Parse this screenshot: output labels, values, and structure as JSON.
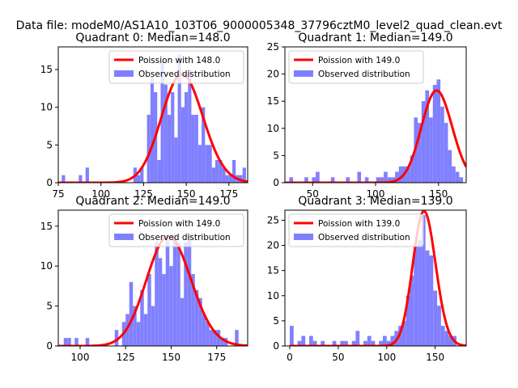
{
  "figure": {
    "suptitle": "Data file: modeM0/AS1A10_103T06_9000005348_37796cztM0_level2_quad_clean.evt"
  },
  "colors": {
    "poisson_line": "#ff0000",
    "observed_bars": "#8080ff",
    "axes": "#000000",
    "background": "#ffffff"
  },
  "chart_data": [
    {
      "type": "bar",
      "title": "Quadrant 0: Median=148.0",
      "xlabel": "",
      "ylabel": "",
      "xlim": [
        75,
        186
      ],
      "ylim": [
        0,
        18
      ],
      "xticks": [
        75,
        100,
        125,
        150,
        175
      ],
      "yticks": [
        0,
        5,
        10,
        15
      ],
      "legend_position": "top-right",
      "legend": [
        "Poission with 148.0",
        "Observed distribution"
      ],
      "series": [
        {
          "name": "Observed distribution",
          "bin_width": 2,
          "x": [
            78,
            88,
            92,
            120,
            122,
            124,
            128,
            130,
            132,
            134,
            136,
            138,
            140,
            142,
            144,
            146,
            148,
            150,
            152,
            154,
            156,
            158,
            160,
            162,
            164,
            166,
            168,
            170,
            172,
            174,
            176,
            178,
            180,
            182,
            184
          ],
          "values": [
            1,
            1,
            2,
            2,
            1,
            2,
            9,
            14,
            12,
            3,
            16,
            13,
            9,
            12,
            6,
            17,
            10,
            12,
            15,
            9,
            9,
            5,
            10,
            5,
            5,
            2,
            3,
            3,
            2,
            1,
            1,
            3,
            1,
            1,
            2
          ]
        },
        {
          "name": "Poission with 148.0",
          "mean": 148.0
        }
      ]
    },
    {
      "type": "bar",
      "title": "Quadrant 1: Median=149.0",
      "xlabel": "",
      "ylabel": "",
      "xlim": [
        28,
        172
      ],
      "ylim": [
        0,
        25
      ],
      "xticks": [
        50,
        100,
        150
      ],
      "yticks": [
        0,
        5,
        10,
        15,
        20,
        25
      ],
      "legend_position": "top-left",
      "legend": [
        "Poission with 149.0",
        "Observed distribution"
      ],
      "series": [
        {
          "name": "Observed distribution",
          "bin_width": 3,
          "x": [
            33,
            45,
            51,
            54,
            66,
            78,
            87,
            93,
            102,
            105,
            108,
            111,
            114,
            117,
            120,
            123,
            126,
            129,
            132,
            135,
            138,
            141,
            144,
            147,
            150,
            153,
            156,
            159,
            162,
            165,
            168
          ],
          "values": [
            1,
            1,
            1,
            2,
            1,
            1,
            2,
            1,
            1,
            1,
            2,
            1,
            1,
            2,
            3,
            3,
            3,
            5,
            12,
            11,
            15,
            17,
            12,
            18,
            19,
            14,
            11,
            6,
            3,
            2,
            1
          ]
        },
        {
          "name": "Poission with 149.0",
          "mean": 149.0
        }
      ]
    },
    {
      "type": "bar",
      "title": "Quadrant 2: Median=149.0",
      "xlabel": "",
      "ylabel": "",
      "xlim": [
        88,
        192
      ],
      "ylim": [
        0,
        17
      ],
      "xticks": [
        100,
        125,
        150,
        175
      ],
      "yticks": [
        0,
        5,
        10,
        15
      ],
      "legend_position": "top-right",
      "legend": [
        "Poission with 149.0",
        "Observed distribution"
      ],
      "series": [
        {
          "name": "Observed distribution",
          "bin_width": 2,
          "x": [
            92,
            94,
            98,
            104,
            120,
            124,
            126,
            128,
            130,
            132,
            134,
            136,
            138,
            140,
            142,
            144,
            146,
            148,
            150,
            152,
            154,
            156,
            158,
            160,
            162,
            164,
            166,
            168,
            170,
            172,
            174,
            176,
            178,
            180,
            186
          ],
          "values": [
            1,
            1,
            1,
            1,
            2,
            3,
            4,
            8,
            5,
            3,
            7,
            4,
            9,
            5,
            13,
            11,
            9,
            14,
            10,
            14,
            13,
            6,
            13,
            14,
            9,
            7,
            6,
            4,
            3,
            2,
            2,
            2,
            1,
            1,
            2
          ]
        },
        {
          "name": "Poission with 149.0",
          "mean": 149.0
        }
      ]
    },
    {
      "type": "bar",
      "title": "Quadrant 3: Median=139.0",
      "xlabel": "",
      "ylabel": "",
      "xlim": [
        -5,
        182
      ],
      "ylim": [
        0,
        27
      ],
      "xticks": [
        0,
        50,
        100,
        150
      ],
      "yticks": [
        0,
        5,
        10,
        15,
        20,
        25
      ],
      "legend_position": "top-left",
      "legend": [
        "Poission with 139.0",
        "Observed distribution"
      ],
      "series": [
        {
          "name": "Observed distribution",
          "bin_width": 4,
          "x": [
            2,
            10,
            14,
            22,
            26,
            34,
            46,
            54,
            58,
            66,
            70,
            78,
            82,
            86,
            94,
            98,
            102,
            106,
            110,
            114,
            118,
            122,
            126,
            130,
            134,
            138,
            142,
            146,
            150,
            154,
            158,
            162,
            166,
            170
          ],
          "values": [
            4,
            1,
            2,
            2,
            1,
            1,
            1,
            1,
            1,
            1,
            3,
            1,
            2,
            1,
            1,
            2,
            1,
            2,
            3,
            4,
            5,
            10,
            14,
            20,
            21,
            26,
            19,
            18,
            11,
            8,
            4,
            3,
            2,
            2
          ]
        },
        {
          "name": "Poission with 139.0",
          "mean": 139.0
        }
      ]
    }
  ]
}
